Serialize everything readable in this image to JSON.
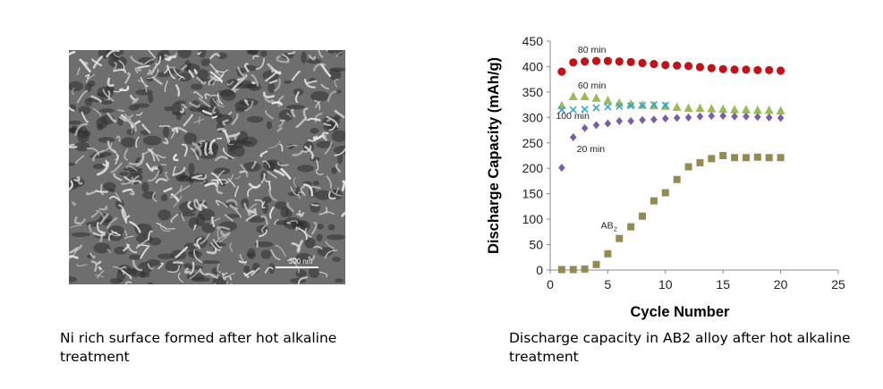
{
  "figure_left": {
    "scale_bar_label": "300 nm",
    "caption": "Ni rich surface  formed after hot alkaline treatment"
  },
  "figure_right": {
    "caption": "Discharge capacity in AB2 alloy after hot alkaline treatment"
  },
  "chart_data": {
    "type": "scatter",
    "xlabel": "Cycle Number",
    "ylabel": "Discharge Capacity (mAh/g)",
    "xlim": [
      0,
      25
    ],
    "ylim": [
      0,
      450
    ],
    "xticks": [
      0,
      5,
      10,
      15,
      20,
      25
    ],
    "yticks": [
      0,
      50,
      100,
      150,
      200,
      250,
      300,
      350,
      400,
      450
    ],
    "grid": false,
    "series": [
      {
        "name": "80 min",
        "marker": "circle",
        "color": "#c0141a",
        "x": [
          1,
          2,
          3,
          4,
          5,
          6,
          7,
          8,
          9,
          10,
          11,
          12,
          13,
          14,
          15,
          16,
          17,
          18,
          19,
          20
        ],
        "y": [
          390,
          408,
          410,
          411,
          411,
          410,
          409,
          407,
          405,
          403,
          402,
          401,
          399,
          397,
          395,
          394,
          394,
          393,
          393,
          392
        ]
      },
      {
        "name": "60 min",
        "marker": "triangle",
        "color": "#9bbb59",
        "x": [
          1,
          2,
          3,
          4,
          5,
          6,
          7,
          8,
          9,
          10,
          11,
          12,
          13,
          14,
          15,
          16,
          17,
          18,
          19,
          20
        ],
        "y": [
          323,
          341,
          341,
          338,
          333,
          328,
          326,
          324,
          323,
          322,
          320,
          318,
          318,
          317,
          316,
          315,
          315,
          314,
          314,
          313
        ]
      },
      {
        "name": "100 min",
        "marker": "x",
        "color": "#2fa6d8",
        "x": [
          1,
          2,
          3,
          4,
          5,
          6,
          7,
          8,
          9,
          10
        ],
        "y": [
          315,
          315,
          316,
          319,
          321,
          322,
          323,
          324,
          325,
          324
        ]
      },
      {
        "name": "20 min",
        "marker": "diamond",
        "color": "#7b5ea7",
        "x": [
          1,
          2,
          3,
          4,
          5,
          6,
          7,
          8,
          9,
          10,
          11,
          12,
          13,
          14,
          15,
          16,
          17,
          18,
          19,
          20
        ],
        "y": [
          201,
          261,
          279,
          285,
          288,
          293,
          293,
          295,
          296,
          298,
          299,
          300,
          302,
          303,
          303,
          302,
          302,
          301,
          300,
          299
        ]
      },
      {
        "name": "AB2",
        "marker": "square",
        "color": "#948a54",
        "x": [
          1,
          2,
          3,
          4,
          5,
          6,
          7,
          8,
          9,
          10,
          11,
          12,
          13,
          14,
          15,
          16,
          17,
          18,
          19,
          20
        ],
        "y": [
          1,
          1,
          2,
          11,
          32,
          62,
          85,
          106,
          136,
          152,
          178,
          203,
          211,
          219,
          225,
          221,
          221,
          222,
          221,
          221
        ]
      }
    ],
    "annotations": [
      {
        "text": "80 min",
        "x": 2.4,
        "y": 427
      },
      {
        "text": "60 min",
        "x": 2.4,
        "y": 357
      },
      {
        "text": "100 min",
        "x": 0.5,
        "y": 297
      },
      {
        "text": "20 min",
        "x": 2.3,
        "y": 232
      },
      {
        "text": "AB",
        "sub": "2",
        "x": 4.4,
        "y": 82
      }
    ]
  }
}
